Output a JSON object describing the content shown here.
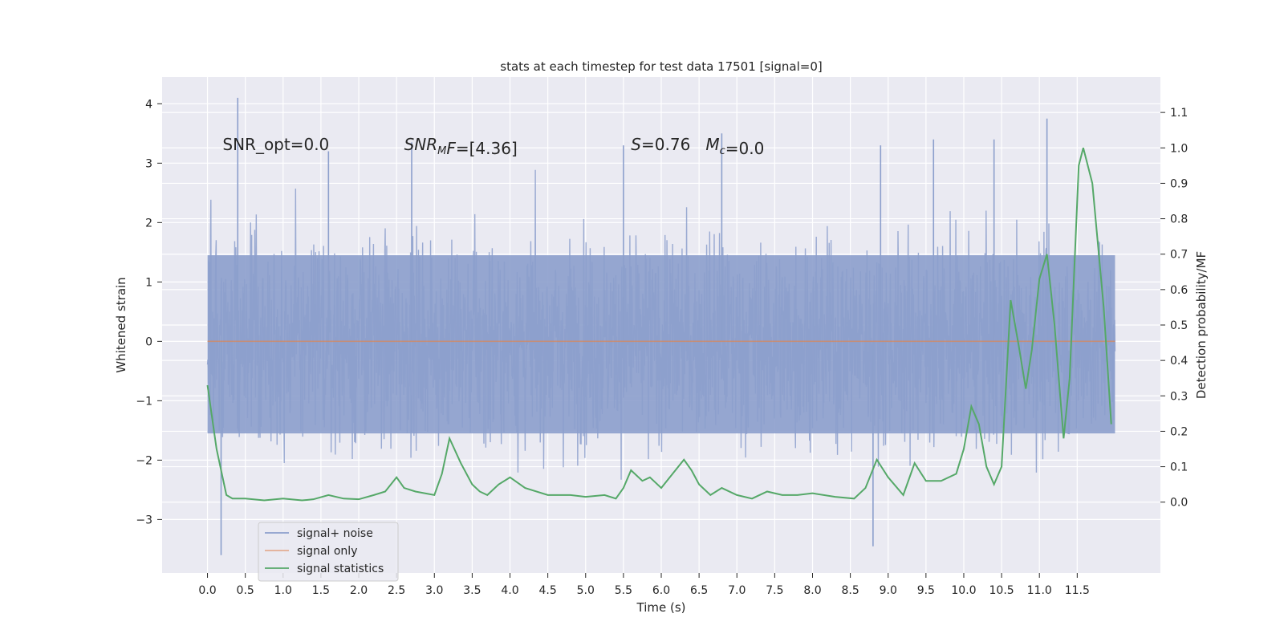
{
  "chart_data": {
    "type": "line",
    "title": "stats at each timestep for test data 17501 [signal=0]",
    "xlabel": "Time (s)",
    "ylabel": "Whitened strain",
    "ylabel_right": "Detection probability/MF",
    "xlim": [
      -0.6,
      12.6
    ],
    "ylim": [
      -3.9,
      4.45
    ],
    "ylim_right": [
      -0.2,
      1.2
    ],
    "x_ticks": [
      0.0,
      0.5,
      1.0,
      1.5,
      2.0,
      2.5,
      3.0,
      3.5,
      4.0,
      4.5,
      5.0,
      5.5,
      6.0,
      6.5,
      7.0,
      7.5,
      8.0,
      8.5,
      9.0,
      9.5,
      10.0,
      10.5,
      11.0,
      11.5
    ],
    "x_tick_labels": [
      "0.0",
      "0.5",
      "1.0",
      "1.5",
      "2.0",
      "2.5",
      "3.0",
      "3.5",
      "4.0",
      "4.5",
      "5.0",
      "5.5",
      "6.0",
      "6.5",
      "7.0",
      "7.5",
      "8.0",
      "8.5",
      "9.0",
      "9.5",
      "10.0",
      "10.5",
      "11.0",
      "11.5"
    ],
    "y_ticks": [
      -3,
      -2,
      -1,
      0,
      1,
      2,
      3,
      4
    ],
    "y_tick_labels": [
      "−3",
      "−2",
      "−1",
      "0",
      "1",
      "2",
      "3",
      "4"
    ],
    "y_ticks_right": [
      0.0,
      0.1,
      0.2,
      0.3,
      0.4,
      0.5,
      0.6,
      0.7,
      0.8,
      0.9,
      1.0,
      1.1
    ],
    "y_tick_labels_right": [
      "0.0",
      "0.1",
      "0.2",
      "0.3",
      "0.4",
      "0.5",
      "0.6",
      "0.7",
      "0.8",
      "0.9",
      "1.0",
      "1.1"
    ],
    "grid": true,
    "legend_location": "lower-left",
    "annotations": [
      {
        "x": 0.2,
        "y": 3.3,
        "text": "SNR_opt=0.0",
        "parts": [
          {
            "t": "SNR_opt=0.0"
          }
        ]
      },
      {
        "x": 2.6,
        "y": 3.3,
        "text": "SNR_MF=[4.36]",
        "parts": [
          {
            "t": "SNR",
            "i": true
          },
          {
            "t": "M",
            "i": true,
            "sub": true
          },
          {
            "t": "F",
            "i": true
          },
          {
            "t": "=[4.36]"
          }
        ]
      },
      {
        "x": 5.6,
        "y": 3.3,
        "text": "S=0.76   M_c=0.0",
        "parts": [
          {
            "t": "S",
            "i": true
          },
          {
            "t": "=0.76   "
          },
          {
            "t": "M",
            "i": true
          },
          {
            "t": "c",
            "i": true,
            "sub": true
          },
          {
            "t": "=0.0"
          }
        ]
      }
    ],
    "series": [
      {
        "name": "signal+ noise",
        "color": "#8c9fcc",
        "axis": "left",
        "t_range": [
          0.0,
          12.0
        ],
        "core_band": [
          -1.55,
          1.45
        ],
        "envelope_upper_max": 4.1,
        "envelope_lower_min": -3.6,
        "spikes": [
          [
            0.4,
            4.1
          ],
          [
            0.18,
            -3.6
          ],
          [
            11.1,
            3.75
          ],
          [
            10.4,
            3.4
          ],
          [
            8.8,
            -3.45
          ],
          [
            9.6,
            3.4
          ],
          [
            8.9,
            3.3
          ],
          [
            1.6,
            3.2
          ],
          [
            2.7,
            3.35
          ],
          [
            6.8,
            3.5
          ],
          [
            5.5,
            3.3
          ]
        ]
      },
      {
        "name": "signal only",
        "color": "#dd8452",
        "axis": "left",
        "x": [
          0.0,
          12.0
        ],
        "y": [
          0.0,
          0.0
        ]
      },
      {
        "name": "signal statistics",
        "color": "#55a868",
        "axis": "right",
        "x": [
          0.0,
          0.12,
          0.25,
          0.33,
          0.5,
          0.75,
          1.0,
          1.25,
          1.4,
          1.6,
          1.8,
          2.0,
          2.2,
          2.35,
          2.5,
          2.6,
          2.75,
          3.0,
          3.1,
          3.2,
          3.35,
          3.5,
          3.6,
          3.7,
          3.85,
          4.0,
          4.2,
          4.5,
          4.8,
          5.0,
          5.25,
          5.4,
          5.5,
          5.6,
          5.75,
          5.85,
          6.0,
          6.15,
          6.3,
          6.4,
          6.5,
          6.65,
          6.8,
          7.0,
          7.2,
          7.4,
          7.6,
          7.8,
          8.0,
          8.3,
          8.55,
          8.7,
          8.85,
          9.0,
          9.2,
          9.35,
          9.5,
          9.7,
          9.9,
          10.0,
          10.1,
          10.2,
          10.3,
          10.4,
          10.5,
          10.62,
          10.72,
          10.82,
          10.9,
          11.0,
          11.1,
          11.2,
          11.32,
          11.4,
          11.52,
          11.58,
          11.7,
          11.85,
          11.95
        ],
        "y": [
          0.33,
          0.15,
          0.02,
          0.01,
          0.01,
          0.005,
          0.01,
          0.005,
          0.008,
          0.02,
          0.01,
          0.008,
          0.02,
          0.03,
          0.07,
          0.04,
          0.03,
          0.02,
          0.08,
          0.18,
          0.11,
          0.05,
          0.03,
          0.02,
          0.05,
          0.07,
          0.04,
          0.02,
          0.02,
          0.015,
          0.02,
          0.01,
          0.04,
          0.09,
          0.06,
          0.07,
          0.04,
          0.08,
          0.12,
          0.09,
          0.05,
          0.02,
          0.04,
          0.02,
          0.01,
          0.03,
          0.02,
          0.02,
          0.025,
          0.015,
          0.01,
          0.04,
          0.12,
          0.07,
          0.02,
          0.11,
          0.06,
          0.06,
          0.08,
          0.15,
          0.27,
          0.22,
          0.1,
          0.05,
          0.1,
          0.57,
          0.45,
          0.32,
          0.43,
          0.63,
          0.7,
          0.5,
          0.18,
          0.35,
          0.95,
          1.0,
          0.9,
          0.55,
          0.22
        ]
      }
    ]
  }
}
